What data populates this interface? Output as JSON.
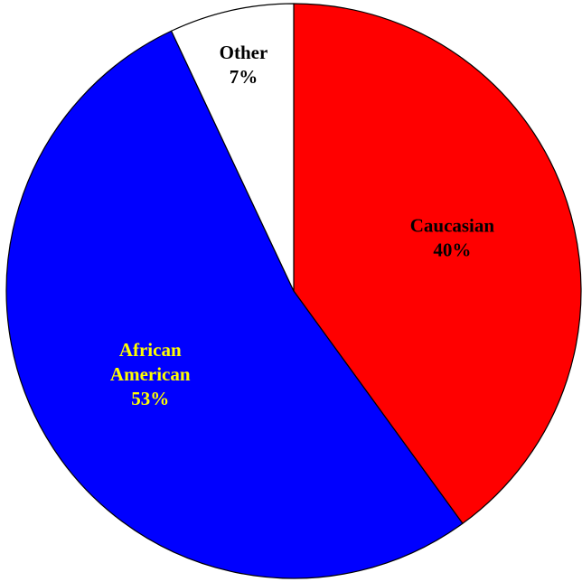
{
  "chart_data": {
    "type": "pie",
    "slices": [
      {
        "name": "Caucasian",
        "label_lines": [
          "Caucasian"
        ],
        "value": 40,
        "value_label": "40%",
        "color": "#ff0000",
        "label_color": "#000000"
      },
      {
        "name": "African American",
        "label_lines": [
          "African",
          "American"
        ],
        "value": 53,
        "value_label": "53%",
        "color": "#0000ff",
        "label_color": "#ffff00"
      },
      {
        "name": "Other",
        "label_lines": [
          "Other"
        ],
        "value": 7,
        "value_label": "7%",
        "color": "#ffffff",
        "label_color": "#000000"
      }
    ],
    "start_angle": "12 o'clock",
    "direction": "clockwise",
    "title": "",
    "legend": "none"
  }
}
